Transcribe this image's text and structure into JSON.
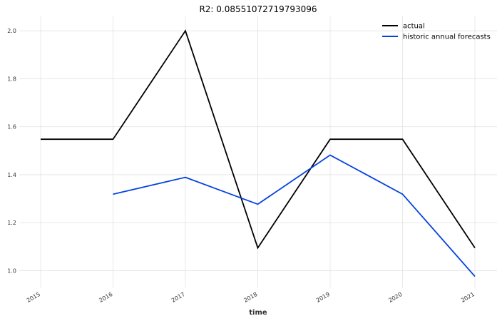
{
  "chart_data": {
    "type": "line",
    "title": "R2: 0.08551072719793096",
    "xlabel": "time",
    "ylabel": "",
    "x": [
      "2015",
      "2016",
      "2017",
      "2018",
      "2019",
      "2020",
      "2021"
    ],
    "ylim": [
      0.93,
      2.06
    ],
    "yticks": [
      "1.0",
      "1.2",
      "1.4",
      "1.6",
      "1.8",
      "2.0"
    ],
    "grid": true,
    "legend_position": "top-right",
    "series": [
      {
        "name": "actual",
        "color": "#000000",
        "values": [
          1.548,
          1.548,
          2.0,
          1.095,
          1.548,
          1.548,
          1.095
        ]
      },
      {
        "name": "historic annual forecasts",
        "color": "#0343df",
        "values": [
          null,
          1.319,
          1.389,
          1.277,
          1.482,
          1.319,
          0.976
        ]
      }
    ]
  }
}
